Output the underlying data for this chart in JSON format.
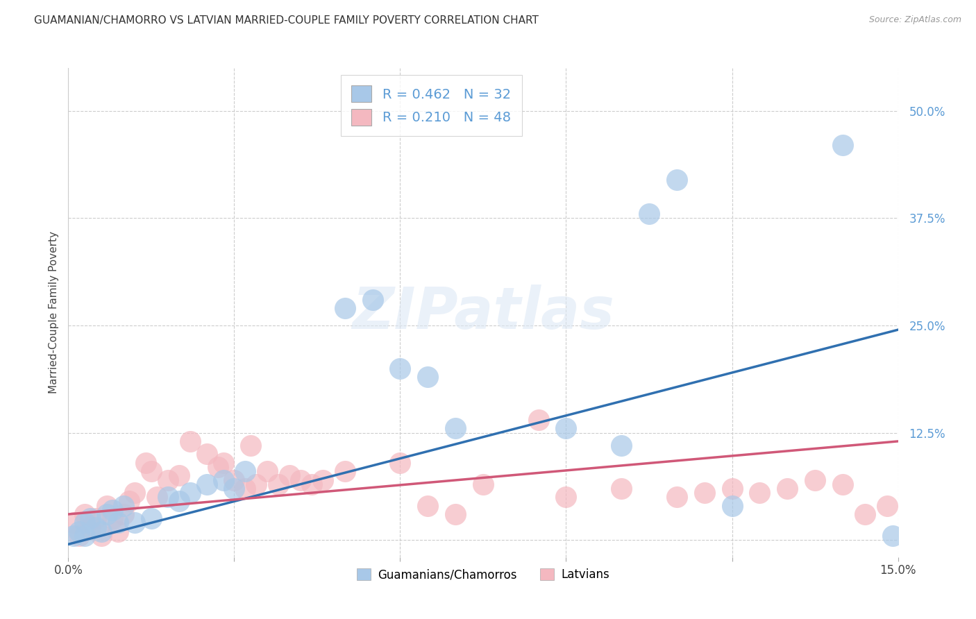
{
  "title": "GUAMANIAN/CHAMORRO VS LATVIAN MARRIED-COUPLE FAMILY POVERTY CORRELATION CHART",
  "source": "Source: ZipAtlas.com",
  "ylabel": "Married-Couple Family Poverty",
  "xlim": [
    0.0,
    0.15
  ],
  "ylim": [
    -0.02,
    0.55
  ],
  "xticks": [
    0.0,
    0.03,
    0.06,
    0.09,
    0.12,
    0.15
  ],
  "yticks": [
    0.0,
    0.125,
    0.25,
    0.375,
    0.5
  ],
  "xticklabels": [
    "0.0%",
    "",
    "",
    "",
    "",
    "15.0%"
  ],
  "yticklabels": [
    "",
    "12.5%",
    "25.0%",
    "37.5%",
    "50.0%"
  ],
  "blue_color": "#a8c8e8",
  "pink_color": "#f4b8c0",
  "line_blue": "#3070b0",
  "line_pink": "#d05878",
  "tick_color": "#5b9bd5",
  "R_blue": "0.462",
  "N_blue": "32",
  "R_pink": "0.210",
  "N_pink": "48",
  "legend_label_blue": "Guamanians/Chamorros",
  "legend_label_pink": "Latvians",
  "background_color": "#ffffff",
  "watermark": "ZIPatlas",
  "guamanian_x": [
    0.001,
    0.002,
    0.003,
    0.003,
    0.004,
    0.005,
    0.006,
    0.007,
    0.008,
    0.009,
    0.01,
    0.012,
    0.015,
    0.018,
    0.02,
    0.022,
    0.025,
    0.028,
    0.03,
    0.032,
    0.05,
    0.055,
    0.06,
    0.065,
    0.07,
    0.09,
    0.1,
    0.105,
    0.11,
    0.12,
    0.14,
    0.149
  ],
  "guamanian_y": [
    0.005,
    0.01,
    0.02,
    0.005,
    0.025,
    0.015,
    0.01,
    0.03,
    0.035,
    0.02,
    0.04,
    0.02,
    0.025,
    0.05,
    0.045,
    0.055,
    0.065,
    0.07,
    0.06,
    0.08,
    0.27,
    0.28,
    0.2,
    0.19,
    0.13,
    0.13,
    0.11,
    0.38,
    0.42,
    0.04,
    0.46,
    0.005
  ],
  "latvian_x": [
    0.001,
    0.002,
    0.003,
    0.004,
    0.005,
    0.006,
    0.007,
    0.008,
    0.009,
    0.01,
    0.011,
    0.012,
    0.014,
    0.015,
    0.016,
    0.018,
    0.02,
    0.022,
    0.025,
    0.027,
    0.028,
    0.03,
    0.032,
    0.033,
    0.034,
    0.036,
    0.038,
    0.04,
    0.042,
    0.044,
    0.046,
    0.05,
    0.06,
    0.065,
    0.07,
    0.075,
    0.085,
    0.09,
    0.1,
    0.11,
    0.115,
    0.12,
    0.125,
    0.13,
    0.135,
    0.14,
    0.144,
    0.148
  ],
  "latvian_y": [
    0.02,
    0.005,
    0.03,
    0.015,
    0.025,
    0.005,
    0.04,
    0.025,
    0.01,
    0.03,
    0.045,
    0.055,
    0.09,
    0.08,
    0.05,
    0.07,
    0.075,
    0.115,
    0.1,
    0.085,
    0.09,
    0.07,
    0.06,
    0.11,
    0.065,
    0.08,
    0.065,
    0.075,
    0.07,
    0.065,
    0.07,
    0.08,
    0.09,
    0.04,
    0.03,
    0.065,
    0.14,
    0.05,
    0.06,
    0.05,
    0.055,
    0.06,
    0.055,
    0.06,
    0.07,
    0.065,
    0.03,
    0.04
  ]
}
